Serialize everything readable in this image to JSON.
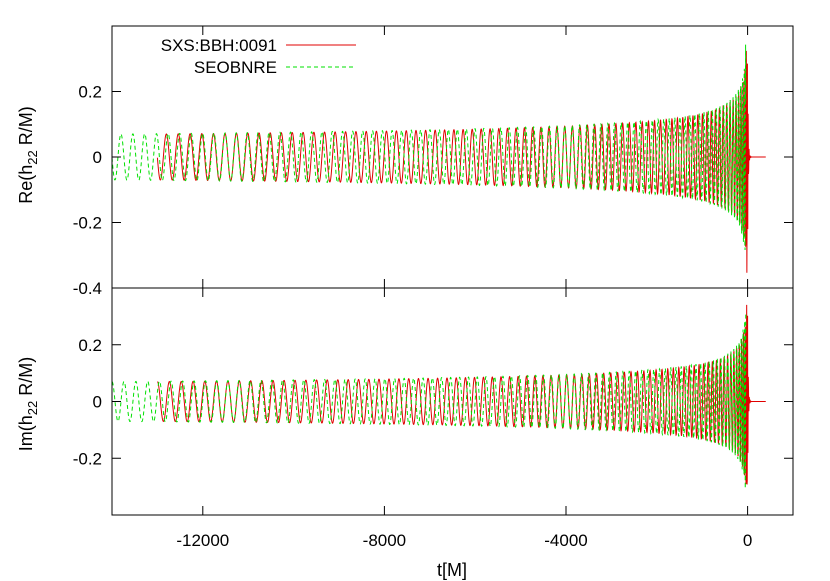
{
  "chart_data": [
    {
      "type": "line",
      "panel": "top",
      "ylabel_main": "Re(h",
      "ylabel_sub": "22",
      "ylabel_tail": " R/M)",
      "xlim": [
        -14000,
        1000
      ],
      "ylim": [
        -0.4,
        0.4
      ],
      "yticks": [
        0.2,
        0,
        -0.2,
        -0.4
      ],
      "ytick_labels": [
        "0.2",
        "0",
        "-0.2",
        "-0.4"
      ],
      "legend_position": "top-left",
      "series": [
        {
          "name": "SXS:BBH:0091",
          "style": "solid",
          "color": "#e00000",
          "t_start": -13000,
          "t_merger": 0,
          "t_end": 400,
          "amplitude_start": 0.07,
          "amplitude_peak": 0.36,
          "period_start": 265,
          "phase": 1.6
        },
        {
          "name": "SEOBNRE",
          "style": "dashed",
          "color": "#00e000",
          "t_start": -14000,
          "t_merger": -20,
          "t_end": -40,
          "amplitude_start": 0.07,
          "amplitude_peak": 0.4,
          "period_start": 265,
          "phase": 1.6
        }
      ]
    },
    {
      "type": "line",
      "panel": "bottom",
      "ylabel_main": "Im(h",
      "ylabel_sub": "22",
      "ylabel_tail": " R/M)",
      "xlabel": "t[M]",
      "xlim": [
        -14000,
        1000
      ],
      "ylim": [
        -0.4,
        0.4
      ],
      "yticks": [
        0.2,
        0,
        -0.2
      ],
      "ytick_labels": [
        "0.2",
        "0",
        "-0.2"
      ],
      "xticks": [
        -12000,
        -8000,
        -4000,
        0
      ],
      "xtick_labels": [
        "-12000",
        "-8000",
        "-4000",
        "0"
      ],
      "series": [
        {
          "name": "SXS:BBH:0091",
          "style": "solid",
          "color": "#e00000",
          "t_start": -13000,
          "t_merger": 0,
          "t_end": 400,
          "amplitude_start": 0.07,
          "amplitude_peak": 0.36,
          "period_start": 265,
          "phase": 0.0
        },
        {
          "name": "SEOBNRE",
          "style": "dashed",
          "color": "#00e000",
          "t_start": -14000,
          "t_merger": -20,
          "t_end": -40,
          "amplitude_start": 0.07,
          "amplitude_peak": 0.4,
          "period_start": 265,
          "phase": 0.0
        }
      ]
    }
  ]
}
